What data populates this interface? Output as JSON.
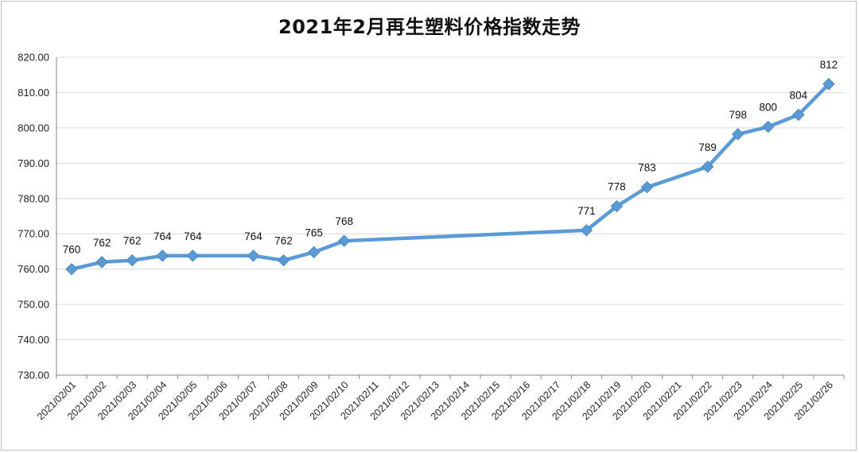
{
  "chart_data": {
    "type": "line",
    "title": "2021年2月再生塑料价格指数走势",
    "xlabel": "",
    "ylabel": "",
    "ylim": [
      730,
      820
    ],
    "y_ticks": [
      "730.00",
      "740.00",
      "750.00",
      "760.00",
      "770.00",
      "780.00",
      "790.00",
      "800.00",
      "810.00",
      "820.00"
    ],
    "categories": [
      "2021/02/01",
      "2021/02/02",
      "2021/02/03",
      "2021/02/04",
      "2021/02/05",
      "2021/02/06",
      "2021/02/07",
      "2021/02/08",
      "2021/02/09",
      "2021/02/10",
      "2021/02/11",
      "2021/02/12",
      "2021/02/13",
      "2021/02/14",
      "2021/02/15",
      "2021/02/16",
      "2021/02/17",
      "2021/02/18",
      "2021/02/19",
      "2021/02/20",
      "2021/02/21",
      "2021/02/22",
      "2021/02/23",
      "2021/02/24",
      "2021/02/25",
      "2021/02/26"
    ],
    "series": [
      {
        "points": [
          {
            "x": "2021/02/01",
            "y": 760,
            "label": "760"
          },
          {
            "x": "2021/02/02",
            "y": 762,
            "label": "762"
          },
          {
            "x": "2021/02/03",
            "y": 762.5,
            "label": "762"
          },
          {
            "x": "2021/02/04",
            "y": 763.8,
            "label": "764"
          },
          {
            "x": "2021/02/05",
            "y": 763.8,
            "label": "764"
          },
          {
            "x": "2021/02/07",
            "y": 763.8,
            "label": "764"
          },
          {
            "x": "2021/02/08",
            "y": 762.5,
            "label": "762"
          },
          {
            "x": "2021/02/09",
            "y": 764.8,
            "label": "765"
          },
          {
            "x": "2021/02/10",
            "y": 768,
            "label": "768"
          },
          {
            "x": "2021/02/18",
            "y": 771,
            "label": "771"
          },
          {
            "x": "2021/02/19",
            "y": 777.8,
            "label": "778"
          },
          {
            "x": "2021/02/20",
            "y": 783.2,
            "label": "783"
          },
          {
            "x": "2021/02/22",
            "y": 789,
            "label": "789"
          },
          {
            "x": "2021/02/23",
            "y": 798.2,
            "label": "798"
          },
          {
            "x": "2021/02/24",
            "y": 800.3,
            "label": "800"
          },
          {
            "x": "2021/02/25",
            "y": 803.7,
            "label": "804"
          },
          {
            "x": "2021/02/26",
            "y": 812.4,
            "label": "812"
          }
        ]
      }
    ],
    "grid": true,
    "legend": "none",
    "colors": {
      "line": "#5b9bd5",
      "grid": "#d9d9d9",
      "axis": "#868686"
    }
  }
}
